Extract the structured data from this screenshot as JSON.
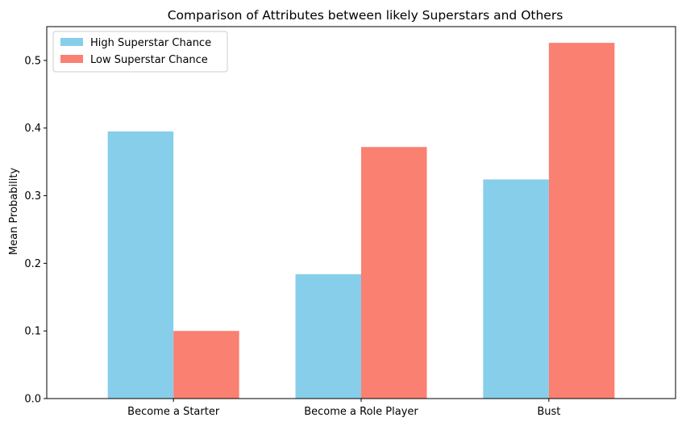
{
  "chart_data": {
    "type": "bar",
    "title": "Comparison of Attributes between likely Superstars and Others",
    "xlabel": "",
    "ylabel": "Mean Probability",
    "categories": [
      "Become a Starter",
      "Become a Role Player",
      "Bust"
    ],
    "series": [
      {
        "name": "High Superstar Chance",
        "values": [
          0.395,
          0.184,
          0.324
        ],
        "color": "#87ceeb"
      },
      {
        "name": "Low Superstar Chance",
        "values": [
          0.1,
          0.372,
          0.526
        ],
        "color": "#fa8072"
      }
    ],
    "ylim": [
      0,
      0.55
    ],
    "yticks": [
      "0.0",
      "0.1",
      "0.2",
      "0.3",
      "0.4",
      "0.5"
    ],
    "legend_position": "top-left",
    "grid": false
  }
}
